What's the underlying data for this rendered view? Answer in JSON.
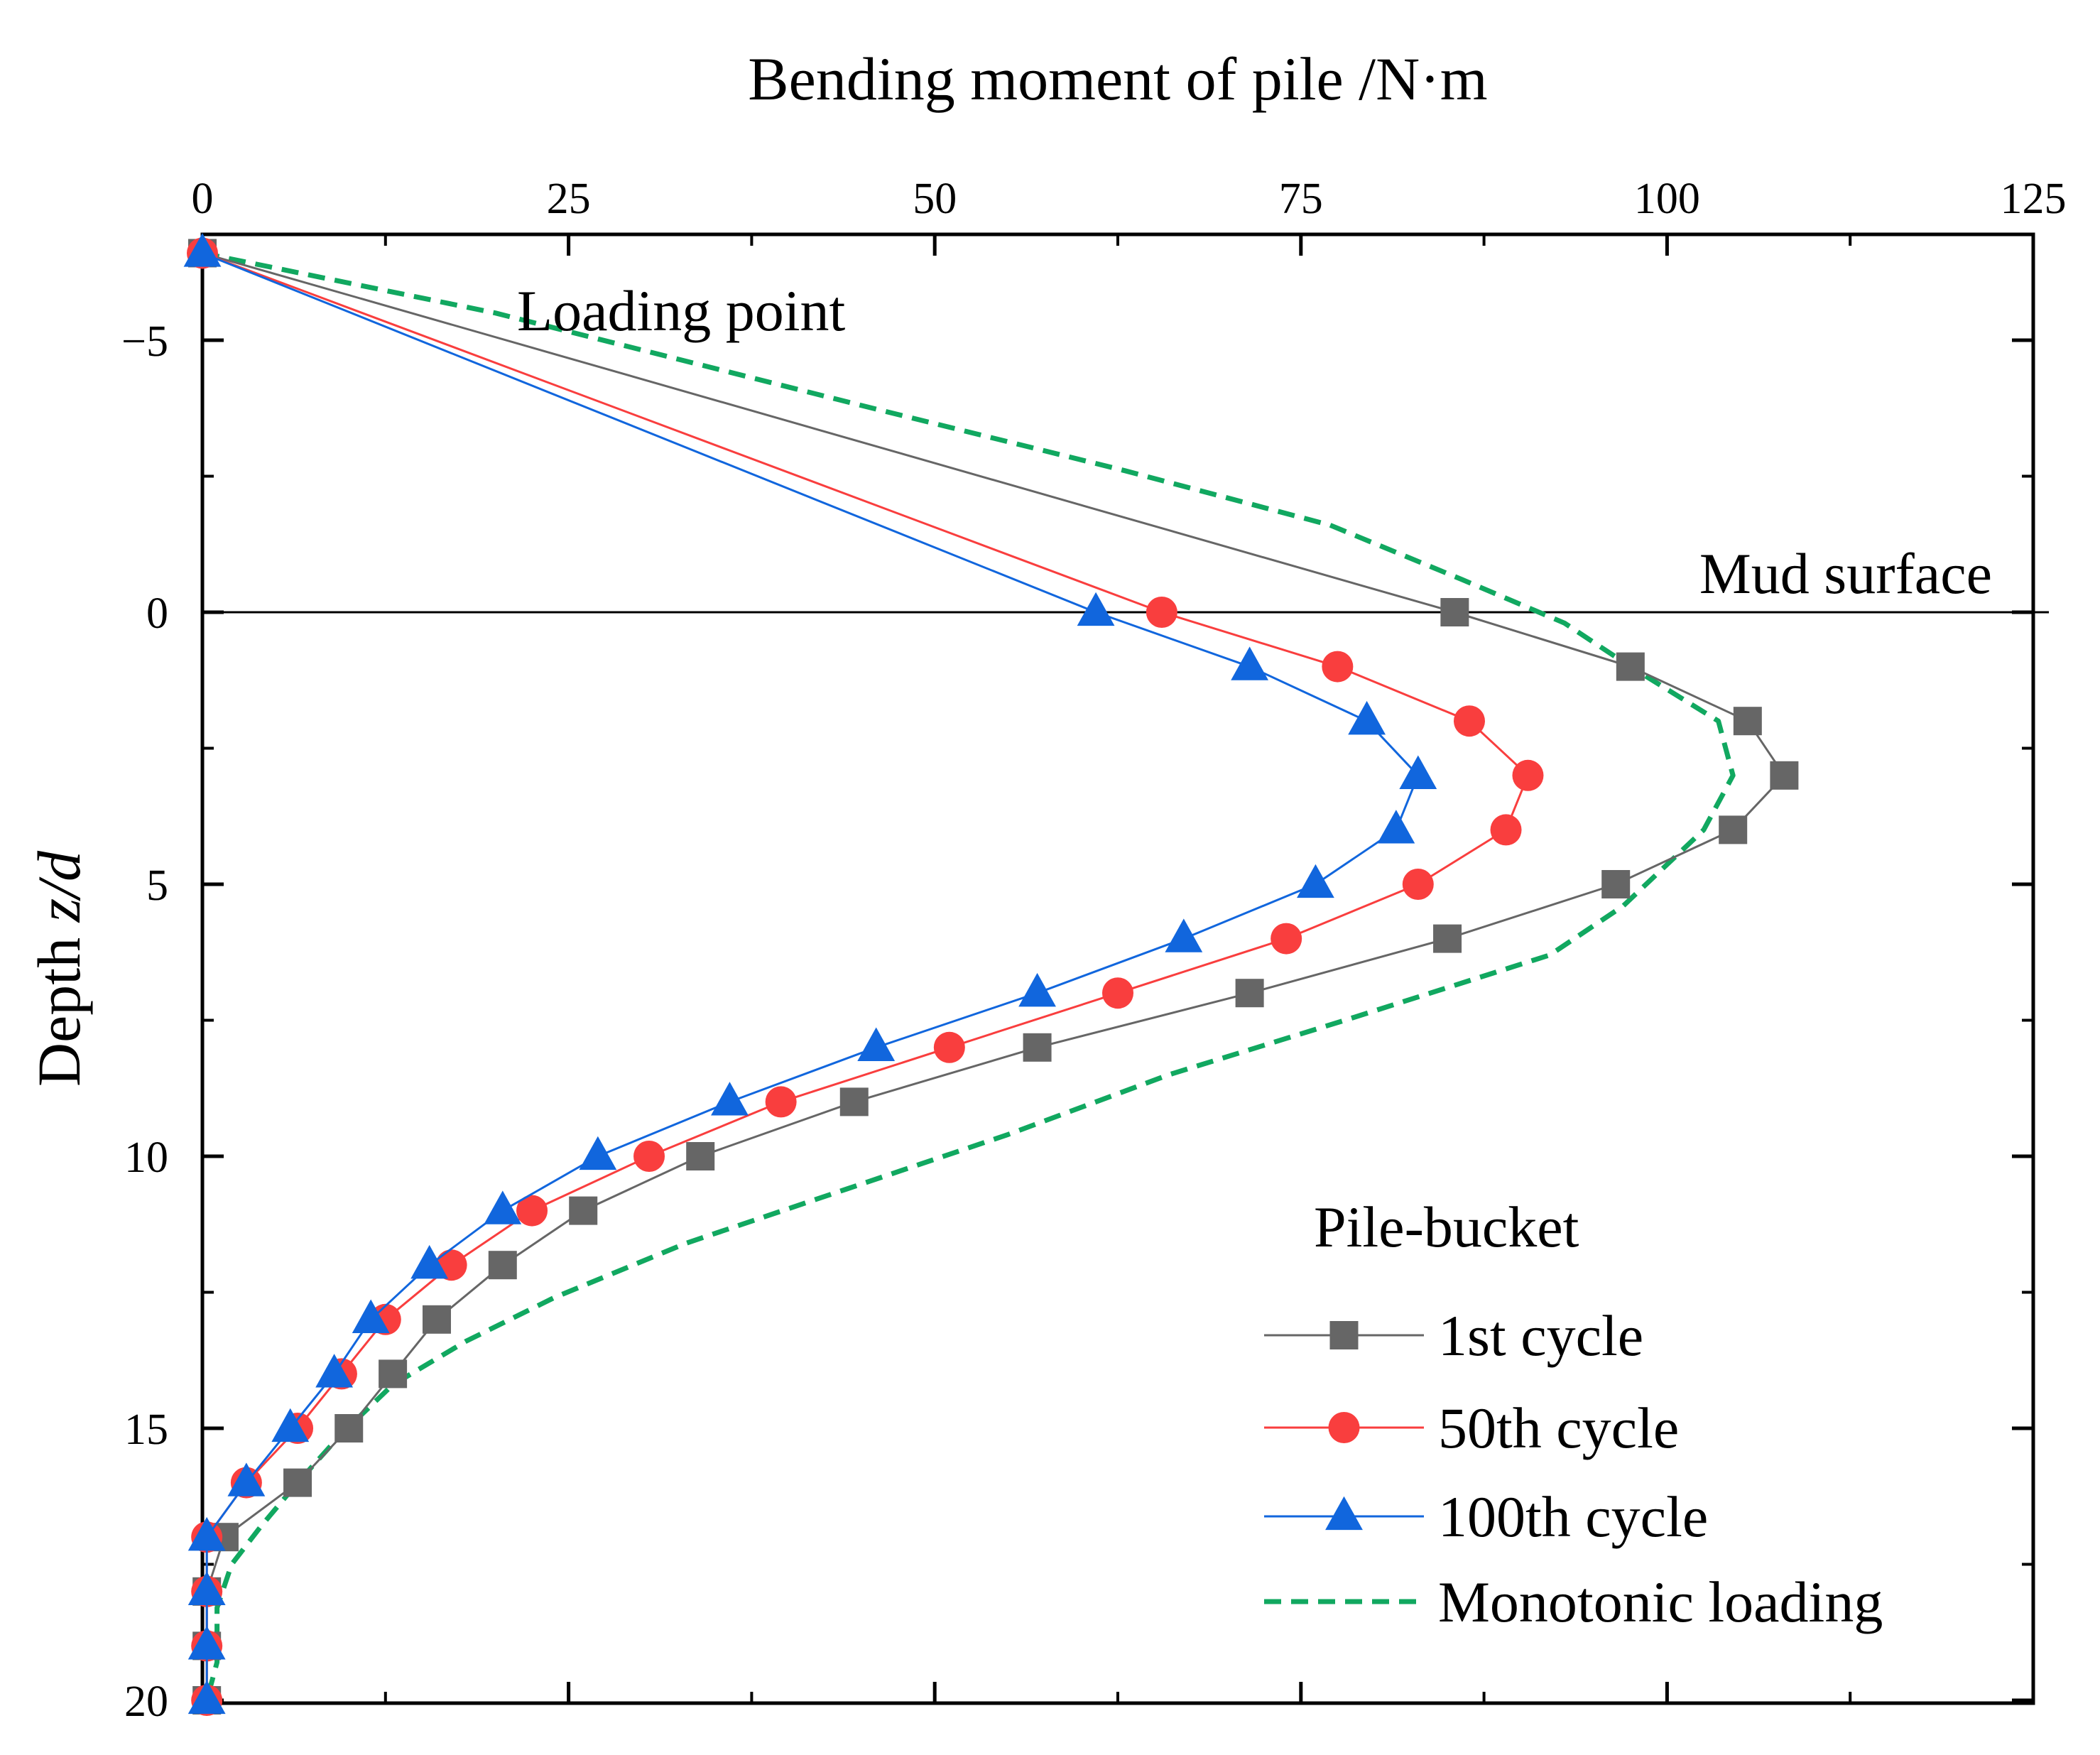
{
  "chart_data": {
    "type": "line",
    "title": "",
    "xlabel": "Bending moment of pile /N·m",
    "ylabel_prefix": "Depth ",
    "ylabel_var": "z/d",
    "xlim": [
      0,
      125
    ],
    "ylim": [
      -7,
      20
    ],
    "y_inverted": true,
    "x_axis_position": "top",
    "x_ticks": [
      "0",
      "25",
      "50",
      "75",
      "100",
      "125"
    ],
    "y_ticks": [
      "−5",
      "0",
      "5",
      "10",
      "15",
      "20"
    ],
    "grid": false,
    "reference_line": {
      "y": 0,
      "label": "Mud surface"
    },
    "annotations": [
      {
        "text": "Loading point",
        "x": 22,
        "y": -5.5
      }
    ],
    "legend": {
      "title": "Pile-bucket",
      "position": "bottom-right"
    },
    "series": [
      {
        "name": "1st cycle",
        "color": "#666666",
        "marker": "square",
        "line": "solid",
        "points": [
          [
            0,
            -6.6
          ],
          [
            85.5,
            0
          ],
          [
            97.5,
            1
          ],
          [
            105.5,
            2
          ],
          [
            108,
            3
          ],
          [
            104.5,
            4
          ],
          [
            96.5,
            5
          ],
          [
            85,
            6
          ],
          [
            71.5,
            7
          ],
          [
            57,
            8
          ],
          [
            44.5,
            9
          ],
          [
            34,
            10
          ],
          [
            26,
            11
          ],
          [
            20.5,
            12
          ],
          [
            16,
            13
          ],
          [
            13,
            14
          ],
          [
            10,
            15
          ],
          [
            6.5,
            16
          ],
          [
            1.5,
            17
          ],
          [
            0.3,
            18
          ],
          [
            0.3,
            19
          ],
          [
            0.3,
            20
          ]
        ]
      },
      {
        "name": "50th cycle",
        "color": "#f93e3e",
        "marker": "circle",
        "line": "solid",
        "points": [
          [
            0,
            -6.6
          ],
          [
            65.5,
            0
          ],
          [
            77.5,
            1
          ],
          [
            86.5,
            2
          ],
          [
            90.5,
            3
          ],
          [
            89,
            4
          ],
          [
            83,
            5
          ],
          [
            74,
            6
          ],
          [
            62.5,
            7
          ],
          [
            51,
            8
          ],
          [
            39.5,
            9
          ],
          [
            30.5,
            10
          ],
          [
            22.5,
            11
          ],
          [
            17,
            12
          ],
          [
            12.5,
            13
          ],
          [
            9.5,
            14
          ],
          [
            6.5,
            15
          ],
          [
            3,
            16
          ],
          [
            0.3,
            17
          ],
          [
            0.3,
            18
          ],
          [
            0.3,
            19
          ],
          [
            0.3,
            20
          ]
        ]
      },
      {
        "name": "100th cycle",
        "color": "#1166dd",
        "marker": "triangle",
        "line": "solid",
        "points": [
          [
            0,
            -6.6
          ],
          [
            61,
            0
          ],
          [
            71.5,
            1
          ],
          [
            79.5,
            2
          ],
          [
            83,
            3
          ],
          [
            81.5,
            4
          ],
          [
            76,
            5
          ],
          [
            67,
            6
          ],
          [
            57,
            7
          ],
          [
            46,
            8
          ],
          [
            36,
            9
          ],
          [
            27,
            10
          ],
          [
            20.5,
            11
          ],
          [
            15.5,
            12
          ],
          [
            11.5,
            13
          ],
          [
            9,
            14
          ],
          [
            6,
            15
          ],
          [
            3,
            16
          ],
          [
            0.3,
            17
          ],
          [
            0.3,
            18
          ],
          [
            0.3,
            19
          ],
          [
            0.3,
            20
          ]
        ]
      },
      {
        "name": "Monotonic loading",
        "color": "#11a860",
        "marker": "none",
        "line": "dashed",
        "points": [
          [
            0,
            -6.6
          ],
          [
            20,
            -5.5
          ],
          [
            45,
            -3.8
          ],
          [
            63,
            -2.6
          ],
          [
            77,
            -1.6
          ],
          [
            86,
            -0.6
          ],
          [
            93,
            0.2
          ],
          [
            97.5,
            1
          ],
          [
            103.5,
            2
          ],
          [
            104.5,
            3
          ],
          [
            102.5,
            4
          ],
          [
            97,
            5.4
          ],
          [
            92,
            6.3
          ],
          [
            78,
            7.5
          ],
          [
            66,
            8.5
          ],
          [
            55,
            9.6
          ],
          [
            44,
            10.6
          ],
          [
            33,
            11.6
          ],
          [
            24,
            12.6
          ],
          [
            18,
            13.4
          ],
          [
            13,
            14.2
          ],
          [
            9.5,
            15.1
          ],
          [
            6.5,
            16
          ],
          [
            4,
            16.8
          ],
          [
            2,
            17.5
          ],
          [
            1,
            18.3
          ],
          [
            1,
            19.3
          ],
          [
            0.3,
            20
          ]
        ]
      }
    ]
  }
}
